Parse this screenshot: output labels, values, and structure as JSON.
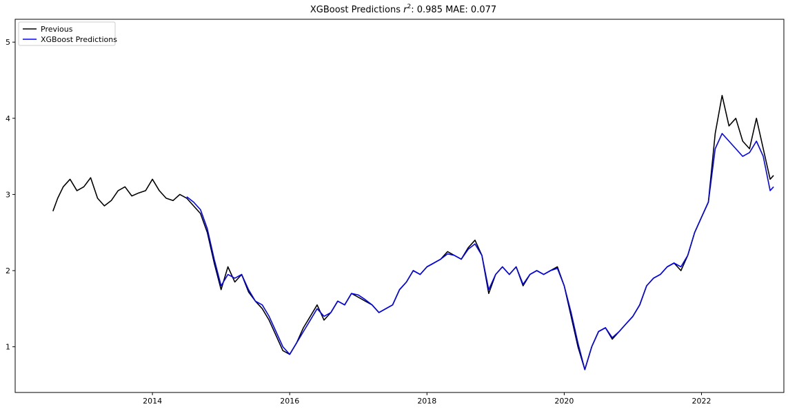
{
  "chart_data": {
    "type": "line",
    "title_prefix": "XGBoost Predictions ",
    "title_r2": "r",
    "title_exp": "2",
    "title_suffix": ": 0.985 MAE: 0.077",
    "xlabel": "",
    "ylabel": "",
    "xlim": [
      2012.0,
      2023.2
    ],
    "ylim": [
      0.4,
      5.3
    ],
    "grid": false,
    "legend_position": "top-left",
    "x_ticks": [
      2014,
      2016,
      2018,
      2020,
      2022
    ],
    "x_tick_labels": [
      "2014",
      "2016",
      "2018",
      "2020",
      "2022"
    ],
    "y_ticks": [
      1,
      2,
      3,
      4,
      5
    ],
    "y_tick_labels": [
      "1",
      "2",
      "3",
      "4",
      "5"
    ],
    "series": [
      {
        "name": "Previous",
        "color": "#000000",
        "x": [
          2012.55,
          2012.62,
          2012.7,
          2012.8,
          2012.9,
          2013.0,
          2013.1,
          2013.2,
          2013.3,
          2013.4,
          2013.5,
          2013.6,
          2013.7,
          2013.8,
          2013.9,
          2014.0,
          2014.1,
          2014.2,
          2014.3,
          2014.4,
          2014.5,
          2014.6,
          2014.7,
          2014.8,
          2014.9,
          2015.0,
          2015.1,
          2015.2,
          2015.3,
          2015.4,
          2015.5,
          2015.6,
          2015.7,
          2015.8,
          2015.9,
          2016.0,
          2016.1,
          2016.2,
          2016.3,
          2016.4,
          2016.5,
          2016.6,
          2016.7,
          2016.8,
          2016.9,
          2017.0,
          2017.1,
          2017.2,
          2017.3,
          2017.4,
          2017.5,
          2017.6,
          2017.7,
          2017.8,
          2017.9,
          2018.0,
          2018.1,
          2018.2,
          2018.3,
          2018.4,
          2018.5,
          2018.6,
          2018.7,
          2018.8,
          2018.9,
          2019.0,
          2019.1,
          2019.2,
          2019.3,
          2019.4,
          2019.5,
          2019.6,
          2019.7,
          2019.8,
          2019.9,
          2020.0,
          2020.1,
          2020.2,
          2020.3,
          2020.4,
          2020.5,
          2020.6,
          2020.7,
          2020.8,
          2020.9,
          2021.0,
          2021.1,
          2021.2,
          2021.3,
          2021.4,
          2021.5,
          2021.6,
          2021.7,
          2021.8,
          2021.9,
          2022.0,
          2022.1,
          2022.2,
          2022.3,
          2022.4,
          2022.5,
          2022.6,
          2022.7,
          2022.8,
          2022.9,
          2023.0,
          2023.05
        ],
        "values": [
          2.78,
          2.95,
          3.1,
          3.2,
          3.05,
          3.1,
          3.22,
          2.95,
          2.85,
          2.92,
          3.05,
          3.1,
          2.98,
          3.02,
          3.05,
          3.2,
          3.05,
          2.95,
          2.92,
          3.0,
          2.95,
          2.85,
          2.75,
          2.5,
          2.1,
          1.75,
          2.05,
          1.85,
          1.95,
          1.72,
          1.6,
          1.5,
          1.35,
          1.15,
          0.95,
          0.9,
          1.05,
          1.25,
          1.4,
          1.55,
          1.35,
          1.45,
          1.6,
          1.55,
          1.7,
          1.65,
          1.6,
          1.55,
          1.45,
          1.5,
          1.55,
          1.75,
          1.85,
          2.0,
          1.95,
          2.05,
          2.1,
          2.15,
          2.25,
          2.2,
          2.15,
          2.3,
          2.4,
          2.2,
          1.7,
          1.95,
          2.05,
          1.95,
          2.05,
          1.8,
          1.95,
          2.0,
          1.95,
          2.0,
          2.05,
          1.8,
          1.4,
          1.0,
          0.7,
          1.0,
          1.2,
          1.25,
          1.1,
          1.2,
          1.3,
          1.4,
          1.55,
          1.8,
          1.9,
          1.95,
          2.05,
          2.1,
          2.0,
          2.2,
          2.5,
          2.7,
          2.9,
          3.8,
          4.3,
          3.9,
          4.0,
          3.7,
          3.6,
          4.0,
          3.6,
          3.2,
          3.25
        ]
      },
      {
        "name": "XGBoost Predictions",
        "color": "#0000ff",
        "x": [
          2014.5,
          2014.6,
          2014.7,
          2014.8,
          2014.9,
          2015.0,
          2015.1,
          2015.2,
          2015.3,
          2015.4,
          2015.5,
          2015.6,
          2015.7,
          2015.8,
          2015.9,
          2016.0,
          2016.1,
          2016.2,
          2016.3,
          2016.4,
          2016.5,
          2016.6,
          2016.7,
          2016.8,
          2016.9,
          2017.0,
          2017.1,
          2017.2,
          2017.3,
          2017.4,
          2017.5,
          2017.6,
          2017.7,
          2017.8,
          2017.9,
          2018.0,
          2018.1,
          2018.2,
          2018.3,
          2018.4,
          2018.5,
          2018.6,
          2018.7,
          2018.8,
          2018.9,
          2019.0,
          2019.1,
          2019.2,
          2019.3,
          2019.4,
          2019.5,
          2019.6,
          2019.7,
          2019.8,
          2019.9,
          2020.0,
          2020.1,
          2020.2,
          2020.3,
          2020.4,
          2020.5,
          2020.6,
          2020.7,
          2020.8,
          2020.9,
          2021.0,
          2021.1,
          2021.2,
          2021.3,
          2021.4,
          2021.5,
          2021.6,
          2021.7,
          2021.8,
          2021.9,
          2022.0,
          2022.1,
          2022.2,
          2022.3,
          2022.4,
          2022.5,
          2022.6,
          2022.7,
          2022.8,
          2022.9,
          2023.0,
          2023.05
        ],
        "values": [
          2.97,
          2.9,
          2.8,
          2.55,
          2.15,
          1.8,
          1.95,
          1.9,
          1.95,
          1.75,
          1.6,
          1.55,
          1.4,
          1.2,
          1.0,
          0.9,
          1.05,
          1.2,
          1.35,
          1.5,
          1.4,
          1.45,
          1.6,
          1.55,
          1.7,
          1.68,
          1.62,
          1.55,
          1.45,
          1.5,
          1.55,
          1.75,
          1.85,
          2.0,
          1.95,
          2.05,
          2.1,
          2.15,
          2.22,
          2.2,
          2.15,
          2.28,
          2.35,
          2.2,
          1.75,
          1.95,
          2.05,
          1.95,
          2.05,
          1.82,
          1.95,
          2.0,
          1.95,
          2.0,
          2.03,
          1.8,
          1.45,
          1.05,
          0.7,
          1.0,
          1.2,
          1.25,
          1.12,
          1.2,
          1.3,
          1.4,
          1.55,
          1.8,
          1.9,
          1.95,
          2.05,
          2.1,
          2.05,
          2.2,
          2.5,
          2.7,
          2.9,
          3.6,
          3.8,
          3.7,
          3.6,
          3.5,
          3.55,
          3.7,
          3.5,
          3.05,
          3.1
        ]
      }
    ]
  }
}
